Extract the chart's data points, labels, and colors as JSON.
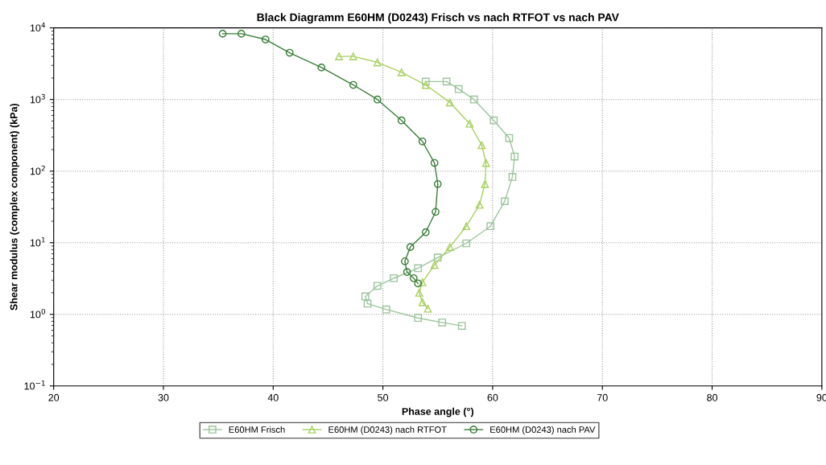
{
  "chart_data": {
    "type": "line",
    "title": "Black Diagramm E60HM (D0243) Frisch vs nach RTFOT vs nach PAV",
    "xlabel": "Phase angle (°)",
    "ylabel": "Shear modulus (complex component) (kPa)",
    "log": "y",
    "grid": true,
    "legend": "bottom",
    "line_style": "solid",
    "xlim": [
      20,
      90
    ],
    "xticks": [
      20,
      30,
      40,
      50,
      60,
      70,
      80,
      90
    ],
    "ylim": [
      0.1,
      10000
    ],
    "yticks": [
      {
        "value": 0.1,
        "label": "10$^{−1}$"
      },
      {
        "value": 1,
        "label": "10$^{0}$"
      },
      {
        "value": 10,
        "label": "10$^{1}$"
      },
      {
        "value": 100,
        "label": "10$^{2}$"
      },
      {
        "value": 1000,
        "label": "10$^{3}$"
      },
      {
        "value": 10000,
        "label": "10$^{4}$"
      }
    ],
    "series": [
      {
        "name": "E60HM Frisch",
        "color": "#9cc49c",
        "marker": "square",
        "x": [
          53.9,
          55.8,
          56.9,
          58.3,
          60.1,
          61.5,
          62.0,
          61.8,
          61.1,
          59.8,
          57.6,
          55.0,
          53.2,
          51.0,
          49.5,
          48.4,
          48.6,
          50.3,
          53.2,
          55.4,
          57.2
        ],
        "values": [
          1780,
          1780,
          1400,
          1000,
          510,
          290,
          160,
          83,
          38,
          17,
          9.8,
          6.2,
          4.4,
          3.2,
          2.5,
          1.78,
          1.41,
          1.17,
          0.89,
          0.77,
          0.69
        ]
      },
      {
        "name": "E60HM (D0243) nach RTFOT",
        "color": "#a8d060",
        "marker": "triangle",
        "x": [
          46.0,
          47.3,
          49.5,
          51.7,
          53.9,
          56.1,
          57.9,
          59.0,
          59.4,
          59.3,
          58.8,
          57.6,
          56.1,
          54.7,
          53.6,
          53.3,
          53.6,
          54.1
        ],
        "values": [
          4000,
          4000,
          3300,
          2400,
          1600,
          910,
          460,
          230,
          130,
          66,
          34,
          17,
          8.7,
          4.9,
          2.8,
          2.0,
          1.48,
          1.2
        ]
      },
      {
        "name": "E60HM (D0243) nach PAV",
        "color": "#3a7d3a",
        "marker": "circle",
        "x": [
          35.4,
          37.1,
          39.3,
          41.5,
          44.4,
          47.3,
          49.5,
          51.7,
          53.6,
          54.7,
          55.0,
          54.8,
          53.9,
          52.5,
          52.0,
          52.2,
          52.8,
          53.2
        ],
        "values": [
          8300,
          8300,
          6900,
          4500,
          2800,
          1600,
          1000,
          510,
          260,
          130,
          66,
          27,
          14,
          8.7,
          5.5,
          3.9,
          3.2,
          2.7
        ]
      }
    ]
  }
}
